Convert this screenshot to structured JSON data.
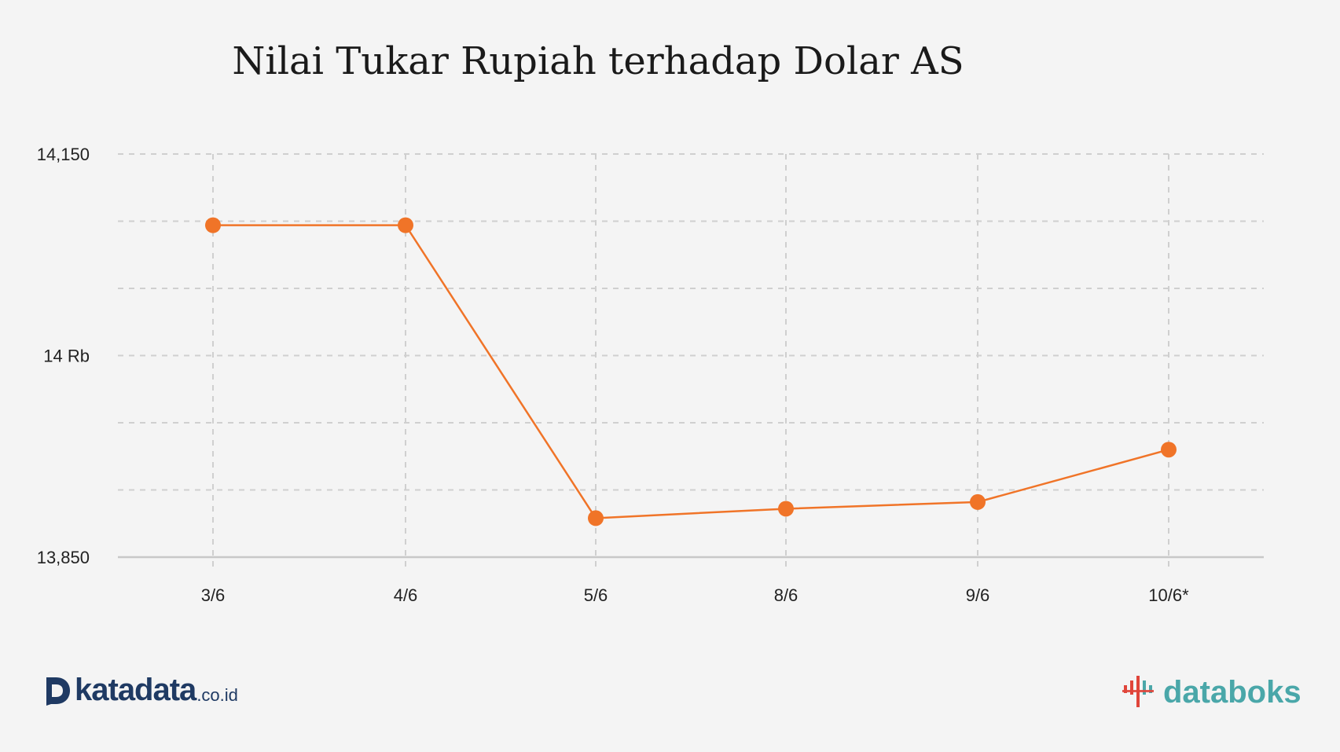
{
  "chart_data": {
    "type": "line",
    "title": "Nilai Tukar Rupiah terhadap Dolar AS",
    "categories": [
      "3/6",
      "4/6",
      "5/6",
      "8/6",
      "9/6",
      "10/6*"
    ],
    "series": [
      {
        "values": [
          14097,
          14097,
          13879,
          13886,
          13891,
          13930
        ]
      }
    ],
    "ylim": [
      13850,
      14150
    ],
    "y_ticks": [
      {
        "value": 14150,
        "label": "14,150"
      },
      {
        "value": 14000,
        "label": "14 Rb"
      },
      {
        "value": 13850,
        "label": "13,850"
      }
    ],
    "y_gridlines": [
      14150,
      14100,
      14050,
      14000,
      13950,
      13900,
      13850
    ],
    "grid": true,
    "line_color": "#f07428",
    "grid_color": "#cfcfcf"
  },
  "branding": {
    "left_logo_main": "katadata",
    "left_logo_suffix": ".co.id",
    "right_logo": "databoks",
    "left_logo_color": "#1f3a63",
    "right_logo_color": "#4aa7a9",
    "right_logo_icon_color": "#e0453a"
  }
}
